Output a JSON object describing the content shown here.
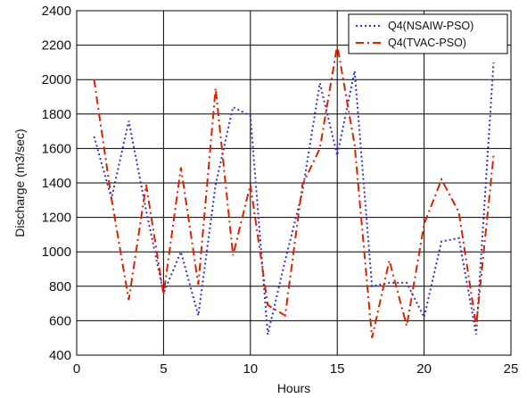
{
  "chart_data": {
    "type": "line",
    "title": "",
    "xlabel": "Hours",
    "ylabel": "Discharge (m3/sec)",
    "xlim": [
      0,
      25
    ],
    "ylim": [
      400,
      2400
    ],
    "xticks": [
      0,
      5,
      10,
      15,
      20,
      25
    ],
    "yticks": [
      400,
      600,
      800,
      1000,
      1200,
      1400,
      1600,
      1800,
      2000,
      2200,
      2400
    ],
    "grid": true,
    "legend_position": "top-right",
    "x": [
      1,
      2,
      3,
      4,
      5,
      6,
      7,
      8,
      9,
      10,
      11,
      12,
      13,
      14,
      15,
      16,
      17,
      18,
      19,
      20,
      21,
      22,
      23,
      24
    ],
    "series": [
      {
        "name": "Q4(NSAIW-PSO)",
        "color": "#3333cc",
        "style": "dotted",
        "values": [
          1670,
          1310,
          1760,
          1240,
          760,
          1000,
          630,
          1390,
          1840,
          1790,
          520,
          950,
          1350,
          1980,
          1560,
          2050,
          800,
          820,
          820,
          620,
          1060,
          1080,
          520,
          2100
        ]
      },
      {
        "name": "Q4(TVAC-PSO)",
        "color": "#dd2200",
        "style": "dashdot",
        "values": [
          2000,
          1310,
          720,
          1390,
          750,
          1490,
          810,
          1950,
          980,
          1390,
          690,
          630,
          1390,
          1600,
          2200,
          1620,
          500,
          950,
          570,
          1160,
          1420,
          1230,
          570,
          1560
        ]
      }
    ]
  }
}
